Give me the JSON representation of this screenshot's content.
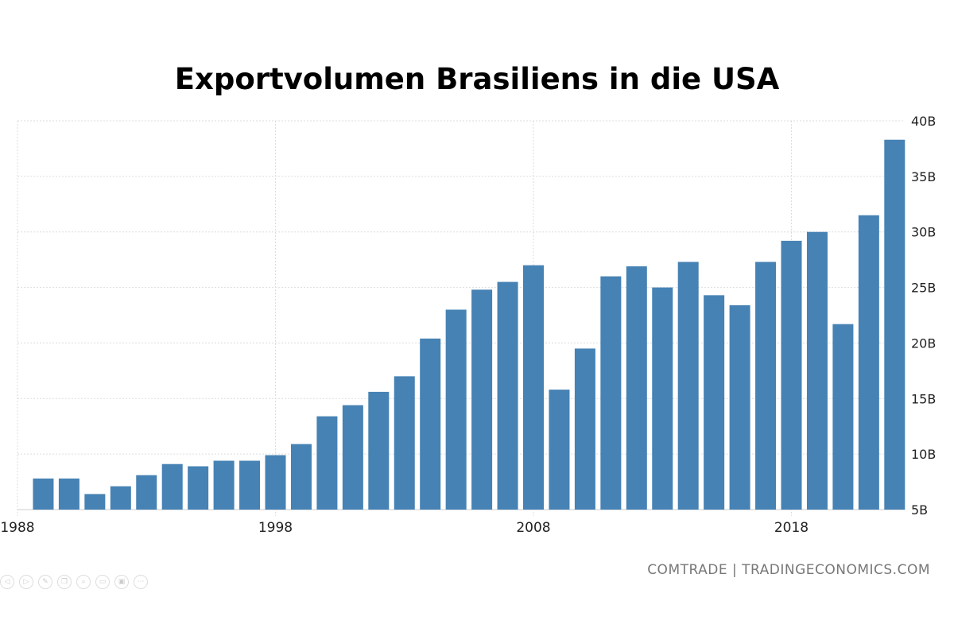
{
  "chart_data": {
    "type": "bar",
    "title": "Exportvolumen Brasiliens in die USA",
    "xlabel": "",
    "ylabel": "",
    "categories": [
      1989,
      1990,
      1991,
      1992,
      1993,
      1994,
      1995,
      1996,
      1997,
      1998,
      1999,
      2000,
      2001,
      2002,
      2003,
      2004,
      2005,
      2006,
      2007,
      2008,
      2009,
      2010,
      2011,
      2012,
      2013,
      2014,
      2015,
      2016,
      2017,
      2018,
      2019,
      2020,
      2021,
      2022
    ],
    "values": [
      7.8,
      7.8,
      6.4,
      7.1,
      8.1,
      9.1,
      8.9,
      9.4,
      9.4,
      9.9,
      10.9,
      13.4,
      14.4,
      15.6,
      17.0,
      20.4,
      23.0,
      24.8,
      25.5,
      27.0,
      15.8,
      19.5,
      26.0,
      26.9,
      25.0,
      27.3,
      24.3,
      23.4,
      27.3,
      29.2,
      30.0,
      21.7,
      31.5,
      38.3
    ],
    "unit": "B",
    "ylim": [
      5,
      40
    ],
    "yticks": [
      "5B",
      "10B",
      "15B",
      "20B",
      "25B",
      "30B",
      "35B",
      "40B"
    ],
    "xticks": [
      "1988",
      "1998",
      "2008",
      "2018"
    ],
    "y_axis_side": "right",
    "grid": true,
    "bar_color": "#4682b4"
  },
  "source": "COMTRADE | TRADINGECONOMICS.COM",
  "controls": [
    "previous-icon",
    "next-icon",
    "pen-icon",
    "copy-icon",
    "zoom-icon",
    "subtitles-icon",
    "camera-icon",
    "more-icon"
  ]
}
